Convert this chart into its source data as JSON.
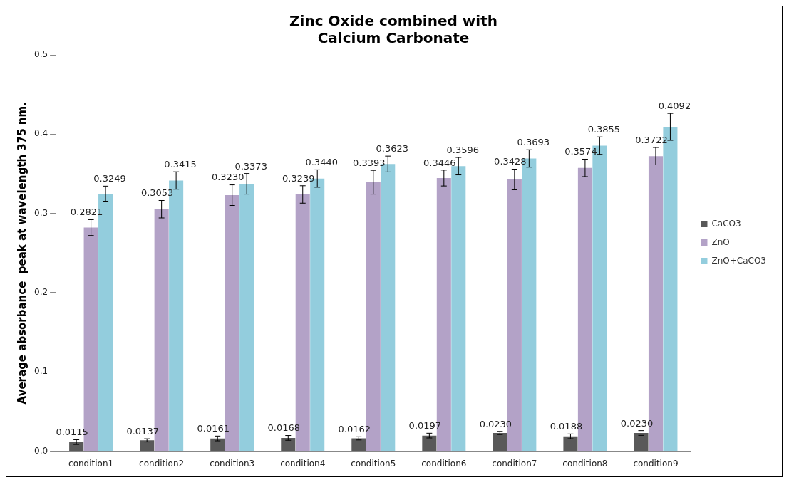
{
  "chart_data": {
    "type": "bar",
    "title": "Zinc Oxide combined with\nCalcium Carbonate",
    "ylabel": "Average absorbance  peak at wavelength 375 nm.",
    "categories": [
      "condition1",
      "condition2",
      "condition3",
      "condition4",
      "condition5",
      "condition6",
      "condition7",
      "condition8",
      "condition9"
    ],
    "series": [
      {
        "name": "CaCO3",
        "color": "#595959",
        "values": [
          0.0115,
          0.0137,
          0.0161,
          0.0168,
          0.0162,
          0.0197,
          0.023,
          0.0188,
          0.023
        ],
        "value_labels": [
          "0.0115",
          "0.0137",
          "0.0161",
          "0.0168",
          "0.0162",
          "0.0197",
          "0.0230",
          "0.0188",
          "0.0230"
        ],
        "errors": [
          0.003,
          0.002,
          0.003,
          0.003,
          0.002,
          0.003,
          0.002,
          0.003,
          0.003
        ]
      },
      {
        "name": "ZnO",
        "color": "#b3a2c7",
        "values": [
          0.2821,
          0.3053,
          0.323,
          0.3239,
          0.3393,
          0.3446,
          0.3428,
          0.3574,
          0.3722
        ],
        "value_labels": [
          "0.2821",
          "0.3053",
          "0.3230",
          "0.3239",
          "0.3393",
          "0.3446",
          "0.3428",
          "0.3574",
          "0.3722"
        ],
        "errors": [
          0.01,
          0.011,
          0.013,
          0.011,
          0.015,
          0.01,
          0.013,
          0.011,
          0.011
        ]
      },
      {
        "name": "ZnO+CaCO3",
        "color": "#93cddd",
        "values": [
          0.3249,
          0.3415,
          0.3373,
          0.344,
          0.3623,
          0.3596,
          0.3693,
          0.3855,
          0.4092
        ],
        "value_labels": [
          "0.3249",
          "0.3415",
          "0.3373",
          "0.3440",
          "0.3623",
          "0.3596",
          "0.3693",
          "0.3855",
          "0.4092"
        ],
        "errors": [
          0.0095,
          0.011,
          0.013,
          0.011,
          0.01,
          0.011,
          0.011,
          0.011,
          0.017
        ]
      }
    ],
    "ylim": [
      0,
      0.5
    ],
    "yticks": [
      {
        "value": 0,
        "label": "0.0"
      },
      {
        "value": 0.1,
        "label": "0.1"
      },
      {
        "value": 0.2,
        "label": "0.2"
      },
      {
        "value": 0.3,
        "label": "0.3"
      },
      {
        "value": 0.4,
        "label": "0.4"
      },
      {
        "value": 0.5,
        "label": "0.5"
      }
    ],
    "grid": false,
    "legend": "right"
  }
}
